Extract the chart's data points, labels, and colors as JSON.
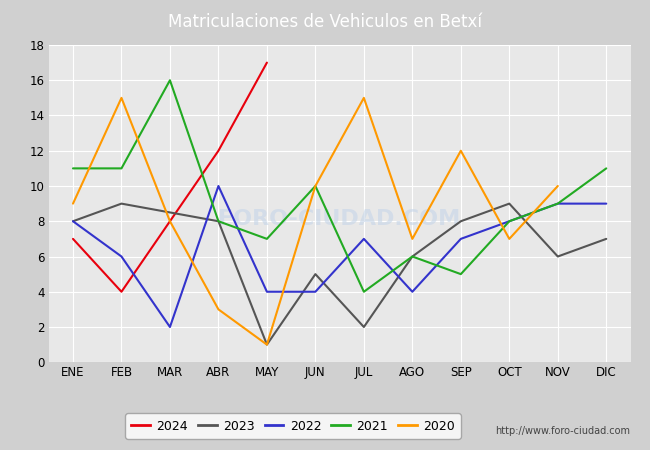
{
  "title": "Matriculaciones de Vehiculos en Betxí",
  "months": [
    "ENE",
    "FEB",
    "MAR",
    "ABR",
    "MAY",
    "JUN",
    "JUL",
    "AGO",
    "SEP",
    "OCT",
    "NOV",
    "DIC"
  ],
  "series": {
    "2024": {
      "color": "#e8000d",
      "values": [
        7,
        4,
        8,
        12,
        17,
        null,
        null,
        null,
        null,
        null,
        null,
        null
      ]
    },
    "2023": {
      "color": "#555555",
      "values": [
        8,
        9,
        8.5,
        8,
        1,
        5,
        2,
        6,
        8,
        9,
        6,
        7
      ]
    },
    "2022": {
      "color": "#3333cc",
      "values": [
        8,
        6,
        2,
        10,
        4,
        4,
        7,
        4,
        7,
        8,
        9,
        9
      ]
    },
    "2021": {
      "color": "#22aa22",
      "values": [
        11,
        11,
        16,
        8,
        7,
        10,
        4,
        6,
        5,
        8,
        9,
        11
      ]
    },
    "2020": {
      "color": "#ff9900",
      "values": [
        9,
        15,
        8,
        3,
        1,
        10,
        15,
        7,
        12,
        7,
        10,
        null
      ]
    }
  },
  "ylim": [
    0,
    18
  ],
  "yticks": [
    0,
    2,
    4,
    6,
    8,
    10,
    12,
    14,
    16,
    18
  ],
  "title_fontsize": 12,
  "outer_bg_color": "#d0d0d0",
  "plot_bg_color": "#e8e8e8",
  "header_color": "#4472c4",
  "footer_color": "#4472c4",
  "url_text": "http://www.foro-ciudad.com",
  "grid_color": "#ffffff",
  "watermark_color": "#c5d5e8",
  "watermark_text": "FORO-CIUDAD.COM",
  "legend_order": [
    "2024",
    "2023",
    "2022",
    "2021",
    "2020"
  ]
}
